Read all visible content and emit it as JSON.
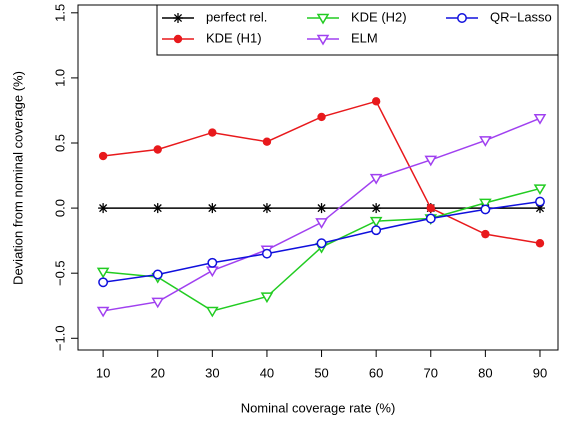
{
  "chart_data": {
    "type": "line",
    "xlabel": "Nominal coverage rate (%)",
    "ylabel": "Deviation from nominal coverage (%)",
    "x": [
      10,
      20,
      30,
      40,
      50,
      60,
      70,
      80,
      90
    ],
    "xlim": [
      5.4,
      93.3
    ],
    "xticks": [
      10,
      20,
      30,
      40,
      50,
      60,
      70,
      80,
      90
    ],
    "ylim": [
      -1.09,
      1.56
    ],
    "yticks": [
      {
        "value": -1.0,
        "label": "−1.0"
      },
      {
        "value": -0.5,
        "label": "−0.5"
      },
      {
        "value": 0,
        "label": "0.0"
      },
      0.5,
      {
        "value": 1.0,
        "label": "1.0"
      },
      1.5
    ],
    "legend": "top-right",
    "legend_columns": 3,
    "series": [
      {
        "name": "perfect rel.",
        "color": "#000000",
        "marker": "asterisk",
        "values": [
          0,
          0,
          0,
          0,
          0,
          0,
          0,
          0,
          0
        ]
      },
      {
        "name": "KDE (H1)",
        "color": "#e8191c",
        "marker": "filled-circle",
        "values": [
          0.4,
          0.45,
          0.58,
          0.51,
          0.7,
          0.82,
          0.0,
          -0.2,
          -0.27
        ]
      },
      {
        "name": "KDE (H2)",
        "color": "#22cc22",
        "marker": "down-triangle",
        "values": [
          -0.49,
          -0.53,
          -0.79,
          -0.68,
          -0.3,
          -0.1,
          -0.08,
          0.04,
          0.15
        ]
      },
      {
        "name": "ELM",
        "color": "#a040f0",
        "marker": "down-triangle",
        "values": [
          -0.79,
          -0.72,
          -0.48,
          -0.32,
          -0.11,
          0.23,
          0.37,
          0.52,
          0.69
        ]
      },
      {
        "name": "QR−Lasso",
        "color": "#1010dd",
        "marker": "circle",
        "values": [
          -0.57,
          -0.51,
          -0.42,
          -0.35,
          -0.27,
          -0.17,
          -0.08,
          -0.01,
          0.05
        ]
      }
    ]
  }
}
